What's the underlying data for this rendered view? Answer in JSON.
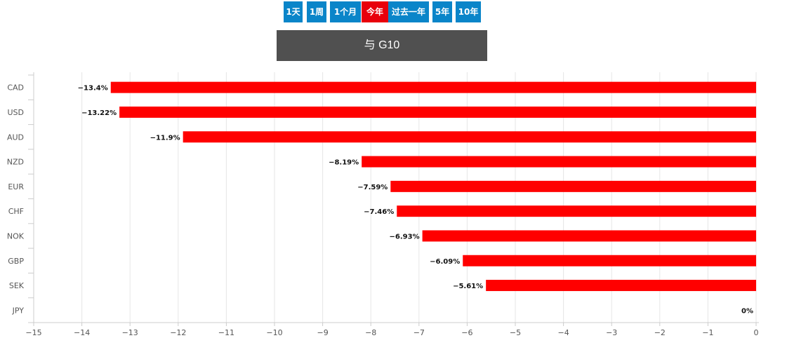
{
  "periods": [
    {
      "label": "1天",
      "active": false
    },
    {
      "label": "1周",
      "active": false
    },
    {
      "label": "1个月",
      "active": false
    },
    {
      "label": "今年",
      "active": true
    },
    {
      "label": "过去一年",
      "active": false
    },
    {
      "label": "5年",
      "active": false
    },
    {
      "label": "10年",
      "active": false
    }
  ],
  "colors": {
    "button": "#0a85c9",
    "active": "#e8000b",
    "bar": "#ff0000",
    "title_bg": "#505050"
  },
  "title": "与 G10",
  "chart_data": {
    "type": "bar",
    "orientation": "horizontal",
    "categories": [
      "CAD",
      "USD",
      "AUD",
      "NZD",
      "EUR",
      "CHF",
      "NOK",
      "GBP",
      "SEK",
      "JPY"
    ],
    "values": [
      -13.4,
      -13.22,
      -11.9,
      -8.19,
      -7.59,
      -7.46,
      -6.93,
      -6.09,
      -5.61,
      0
    ],
    "data_labels": [
      "−13.4%",
      "−13.22%",
      "−11.9%",
      "−8.19%",
      "−7.59%",
      "−7.46%",
      "−6.93%",
      "−6.09%",
      "−5.61%",
      "0%"
    ],
    "xlim": [
      -15,
      0
    ],
    "ticks": [
      -15,
      -14,
      -13,
      -12,
      -11,
      -10,
      -9,
      -8,
      -7,
      -6,
      -5,
      -4,
      -3,
      -2,
      -1,
      0
    ],
    "tick_labels": [
      "−15",
      "−14",
      "−13",
      "−12",
      "−11",
      "−10",
      "−9",
      "−8",
      "−7",
      "−6",
      "−5",
      "−4",
      "−3",
      "−2",
      "−1",
      "0"
    ],
    "grid": true,
    "xlabel": "",
    "ylabel": ""
  }
}
